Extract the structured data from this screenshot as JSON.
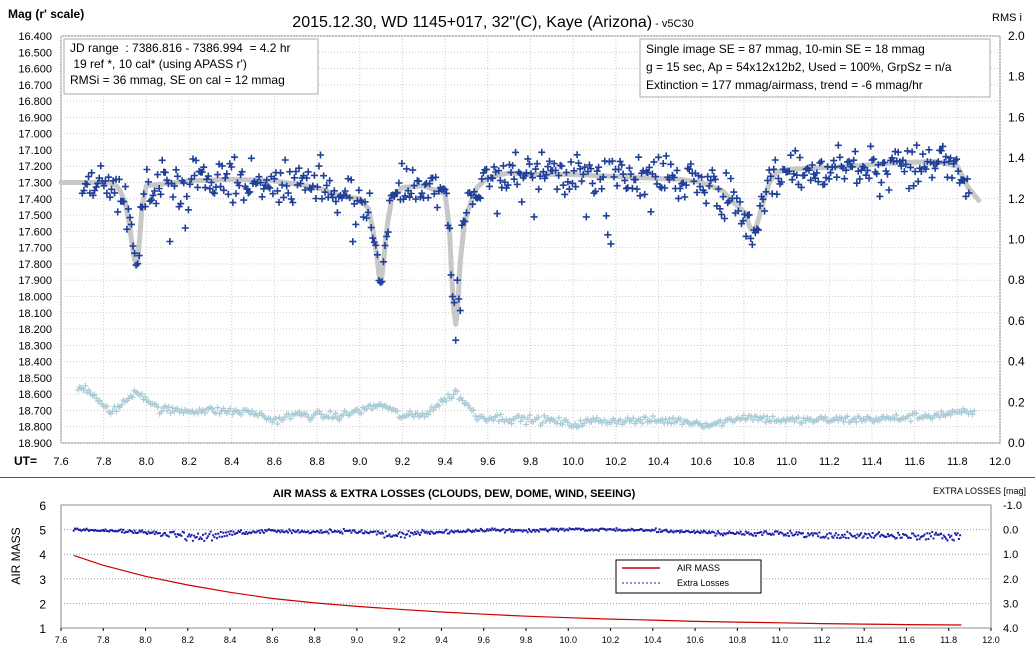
{
  "chart_data": [
    {
      "type": "scatter",
      "title": "2015.12.30,  WD 1145+017, 32\"(C), Kaye (Arizona)",
      "title_suffix": " - v5C30",
      "ylabel": "Mag (r' scale)",
      "y2label": "RMS i",
      "xlabel": "UT=",
      "xlim": [
        7.6,
        12.0
      ],
      "ylim": [
        16.4,
        18.9
      ],
      "y2lim": [
        0.0,
        2.0
      ],
      "y_reversed": true,
      "grid": true,
      "x_ticks": [
        "7.6",
        "7.8",
        "8.0",
        "8.2",
        "8.4",
        "8.6",
        "8.8",
        "9.0",
        "9.2",
        "9.4",
        "9.6",
        "9.8",
        "10.0",
        "10.2",
        "10.4",
        "10.6",
        "10.8",
        "11.0",
        "11.2",
        "11.4",
        "11.6",
        "11.8",
        "12.0"
      ],
      "y_ticks": [
        "16.400",
        "16.500",
        "16.600",
        "16.700",
        "16.800",
        "16.900",
        "17.000",
        "17.100",
        "17.200",
        "17.300",
        "17.400",
        "17.500",
        "17.600",
        "17.700",
        "17.800",
        "17.900",
        "18.000",
        "18.100",
        "18.200",
        "18.300",
        "18.400",
        "18.500",
        "18.600",
        "18.700",
        "18.800",
        "18.900"
      ],
      "y2_ticks": [
        "0.0",
        "0.2",
        "0.4",
        "0.6",
        "0.8",
        "1.0",
        "1.2",
        "1.4",
        "1.6",
        "1.8",
        "2.0"
      ],
      "info_left": [
        "JD range  : 7386.816 - 7386.994  = 4.2 hr",
        " 19 ref *, 10 cal* (using APASS r')",
        "RMSi = 36 mmag, SE on cal = 12 mmag"
      ],
      "info_right": [
        "Single image SE = 87 mmag, 10-min SE = 18 mmag",
        "g = 15 sec, Ap = 54x12x12b2, Used = 100%, GrpSz = n/a",
        "Extinction = 177 mmag/airmass, trend = -6 mmag/hr"
      ],
      "colors": {
        "data": "#1f3f99",
        "model": "#c8c8c8",
        "rms": "#a9cbd6",
        "grid": "#cccccc"
      },
      "model_curve": {
        "x": [
          7.6,
          7.82,
          7.86,
          7.88,
          7.9,
          7.91,
          7.92,
          7.93,
          7.94,
          7.95,
          7.96,
          7.97,
          7.98,
          8.0,
          8.2,
          8.4,
          8.6,
          8.8,
          8.9,
          9.0,
          9.04,
          9.06,
          9.08,
          9.09,
          9.1,
          9.11,
          9.13,
          9.15,
          9.2,
          9.3,
          9.4,
          9.42,
          9.43,
          9.44,
          9.45,
          9.46,
          9.47,
          9.49,
          9.52,
          9.55,
          9.6,
          9.7,
          9.8,
          10.0,
          10.3,
          10.5,
          10.6,
          10.7,
          10.75,
          10.8,
          10.83,
          10.85,
          10.87,
          10.89,
          10.92,
          10.95,
          11.0,
          11.3,
          11.5,
          11.7,
          11.8,
          11.85,
          11.9
        ],
        "mag": [
          17.3,
          17.3,
          17.32,
          17.36,
          17.42,
          17.48,
          17.56,
          17.65,
          17.74,
          17.81,
          17.78,
          17.62,
          17.44,
          17.32,
          17.29,
          17.28,
          17.29,
          17.33,
          17.38,
          17.4,
          17.46,
          17.58,
          17.75,
          17.87,
          17.92,
          17.8,
          17.55,
          17.4,
          17.33,
          17.32,
          17.37,
          17.58,
          17.85,
          18.08,
          18.17,
          18.05,
          17.8,
          17.55,
          17.42,
          17.33,
          17.27,
          17.24,
          17.25,
          17.25,
          17.27,
          17.28,
          17.3,
          17.35,
          17.42,
          17.48,
          17.58,
          17.6,
          17.52,
          17.42,
          17.3,
          17.24,
          17.22,
          17.2,
          17.18,
          17.17,
          17.2,
          17.33,
          17.41
        ]
      },
      "rms_curve": {
        "x": [
          7.6,
          7.65,
          7.7,
          7.75,
          7.8,
          7.85,
          7.9,
          7.95,
          8.0,
          8.05,
          8.1,
          8.3,
          8.5,
          8.6,
          8.7,
          8.9,
          9.1,
          9.2,
          9.3,
          9.45,
          9.55,
          9.7,
          9.9,
          10.0,
          10.1,
          10.5,
          10.65,
          10.8,
          11.0,
          11.5,
          11.85
        ],
        "rms": [
          0.2,
          0.24,
          0.28,
          0.24,
          0.17,
          0.16,
          0.2,
          0.26,
          0.22,
          0.17,
          0.16,
          0.16,
          0.15,
          0.11,
          0.14,
          0.13,
          0.19,
          0.13,
          0.14,
          0.25,
          0.13,
          0.12,
          0.11,
          0.09,
          0.11,
          0.11,
          0.09,
          0.13,
          0.11,
          0.12,
          0.15
        ]
      }
    },
    {
      "type": "line",
      "title": "AIR MASS & EXTRA LOSSES (CLOUDS, DEW, DOME, WIND, SEEING)",
      "ylabel": "AIR MASS",
      "y2label": "EXTRA LOSSES [mag]",
      "xlim": [
        7.6,
        12.0
      ],
      "ylim": [
        1,
        6
      ],
      "y2lim": [
        -1.0,
        4.0
      ],
      "y2_reversed": true,
      "x_ticks": [
        "7.6",
        "7.8",
        "8.0",
        "8.2",
        "8.4",
        "8.6",
        "8.8",
        "9.0",
        "9.2",
        "9.4",
        "9.6",
        "9.8",
        "10.0",
        "10.2",
        "10.4",
        "10.6",
        "10.8",
        "11.0",
        "11.2",
        "11.4",
        "11.6",
        "11.8",
        "12.0"
      ],
      "y_ticks": [
        "1",
        "2",
        "3",
        "4",
        "5",
        "6"
      ],
      "y2_ticks": [
        "-1.0",
        "0.0",
        "1.0",
        "2.0",
        "3.0",
        "4.0"
      ],
      "legend": [
        "AIR MASS",
        "Extra Losses"
      ],
      "legend_position": "center-right",
      "colors": {
        "airmass": "#cc0000",
        "losses": "#1f1fa8"
      },
      "series": [
        {
          "name": "AIR MASS",
          "x": [
            7.66,
            7.8,
            8.0,
            8.2,
            8.4,
            8.6,
            8.8,
            9.0,
            9.2,
            9.4,
            9.6,
            9.8,
            10.0,
            10.2,
            10.4,
            10.6,
            10.8,
            11.0,
            11.2,
            11.4,
            11.6,
            11.86
          ],
          "values": [
            3.95,
            3.55,
            3.1,
            2.75,
            2.45,
            2.2,
            2.02,
            1.88,
            1.76,
            1.65,
            1.56,
            1.48,
            1.42,
            1.36,
            1.32,
            1.27,
            1.24,
            1.21,
            1.18,
            1.16,
            1.14,
            1.12
          ]
        },
        {
          "name": "Extra Losses",
          "x": [
            7.66,
            7.8,
            7.95,
            8.1,
            8.25,
            8.4,
            8.6,
            8.8,
            9.0,
            9.2,
            9.4,
            9.6,
            9.8,
            10.0,
            10.2,
            10.4,
            10.6,
            10.8,
            11.0,
            11.2,
            11.4,
            11.6,
            11.86
          ],
          "values": [
            0.0,
            0.05,
            0.1,
            0.2,
            0.4,
            0.2,
            0.05,
            0.1,
            0.1,
            0.25,
            0.1,
            0.05,
            0.05,
            0.0,
            0.0,
            0.05,
            0.1,
            0.2,
            0.15,
            0.3,
            0.25,
            0.3,
            0.35
          ]
        }
      ]
    }
  ]
}
